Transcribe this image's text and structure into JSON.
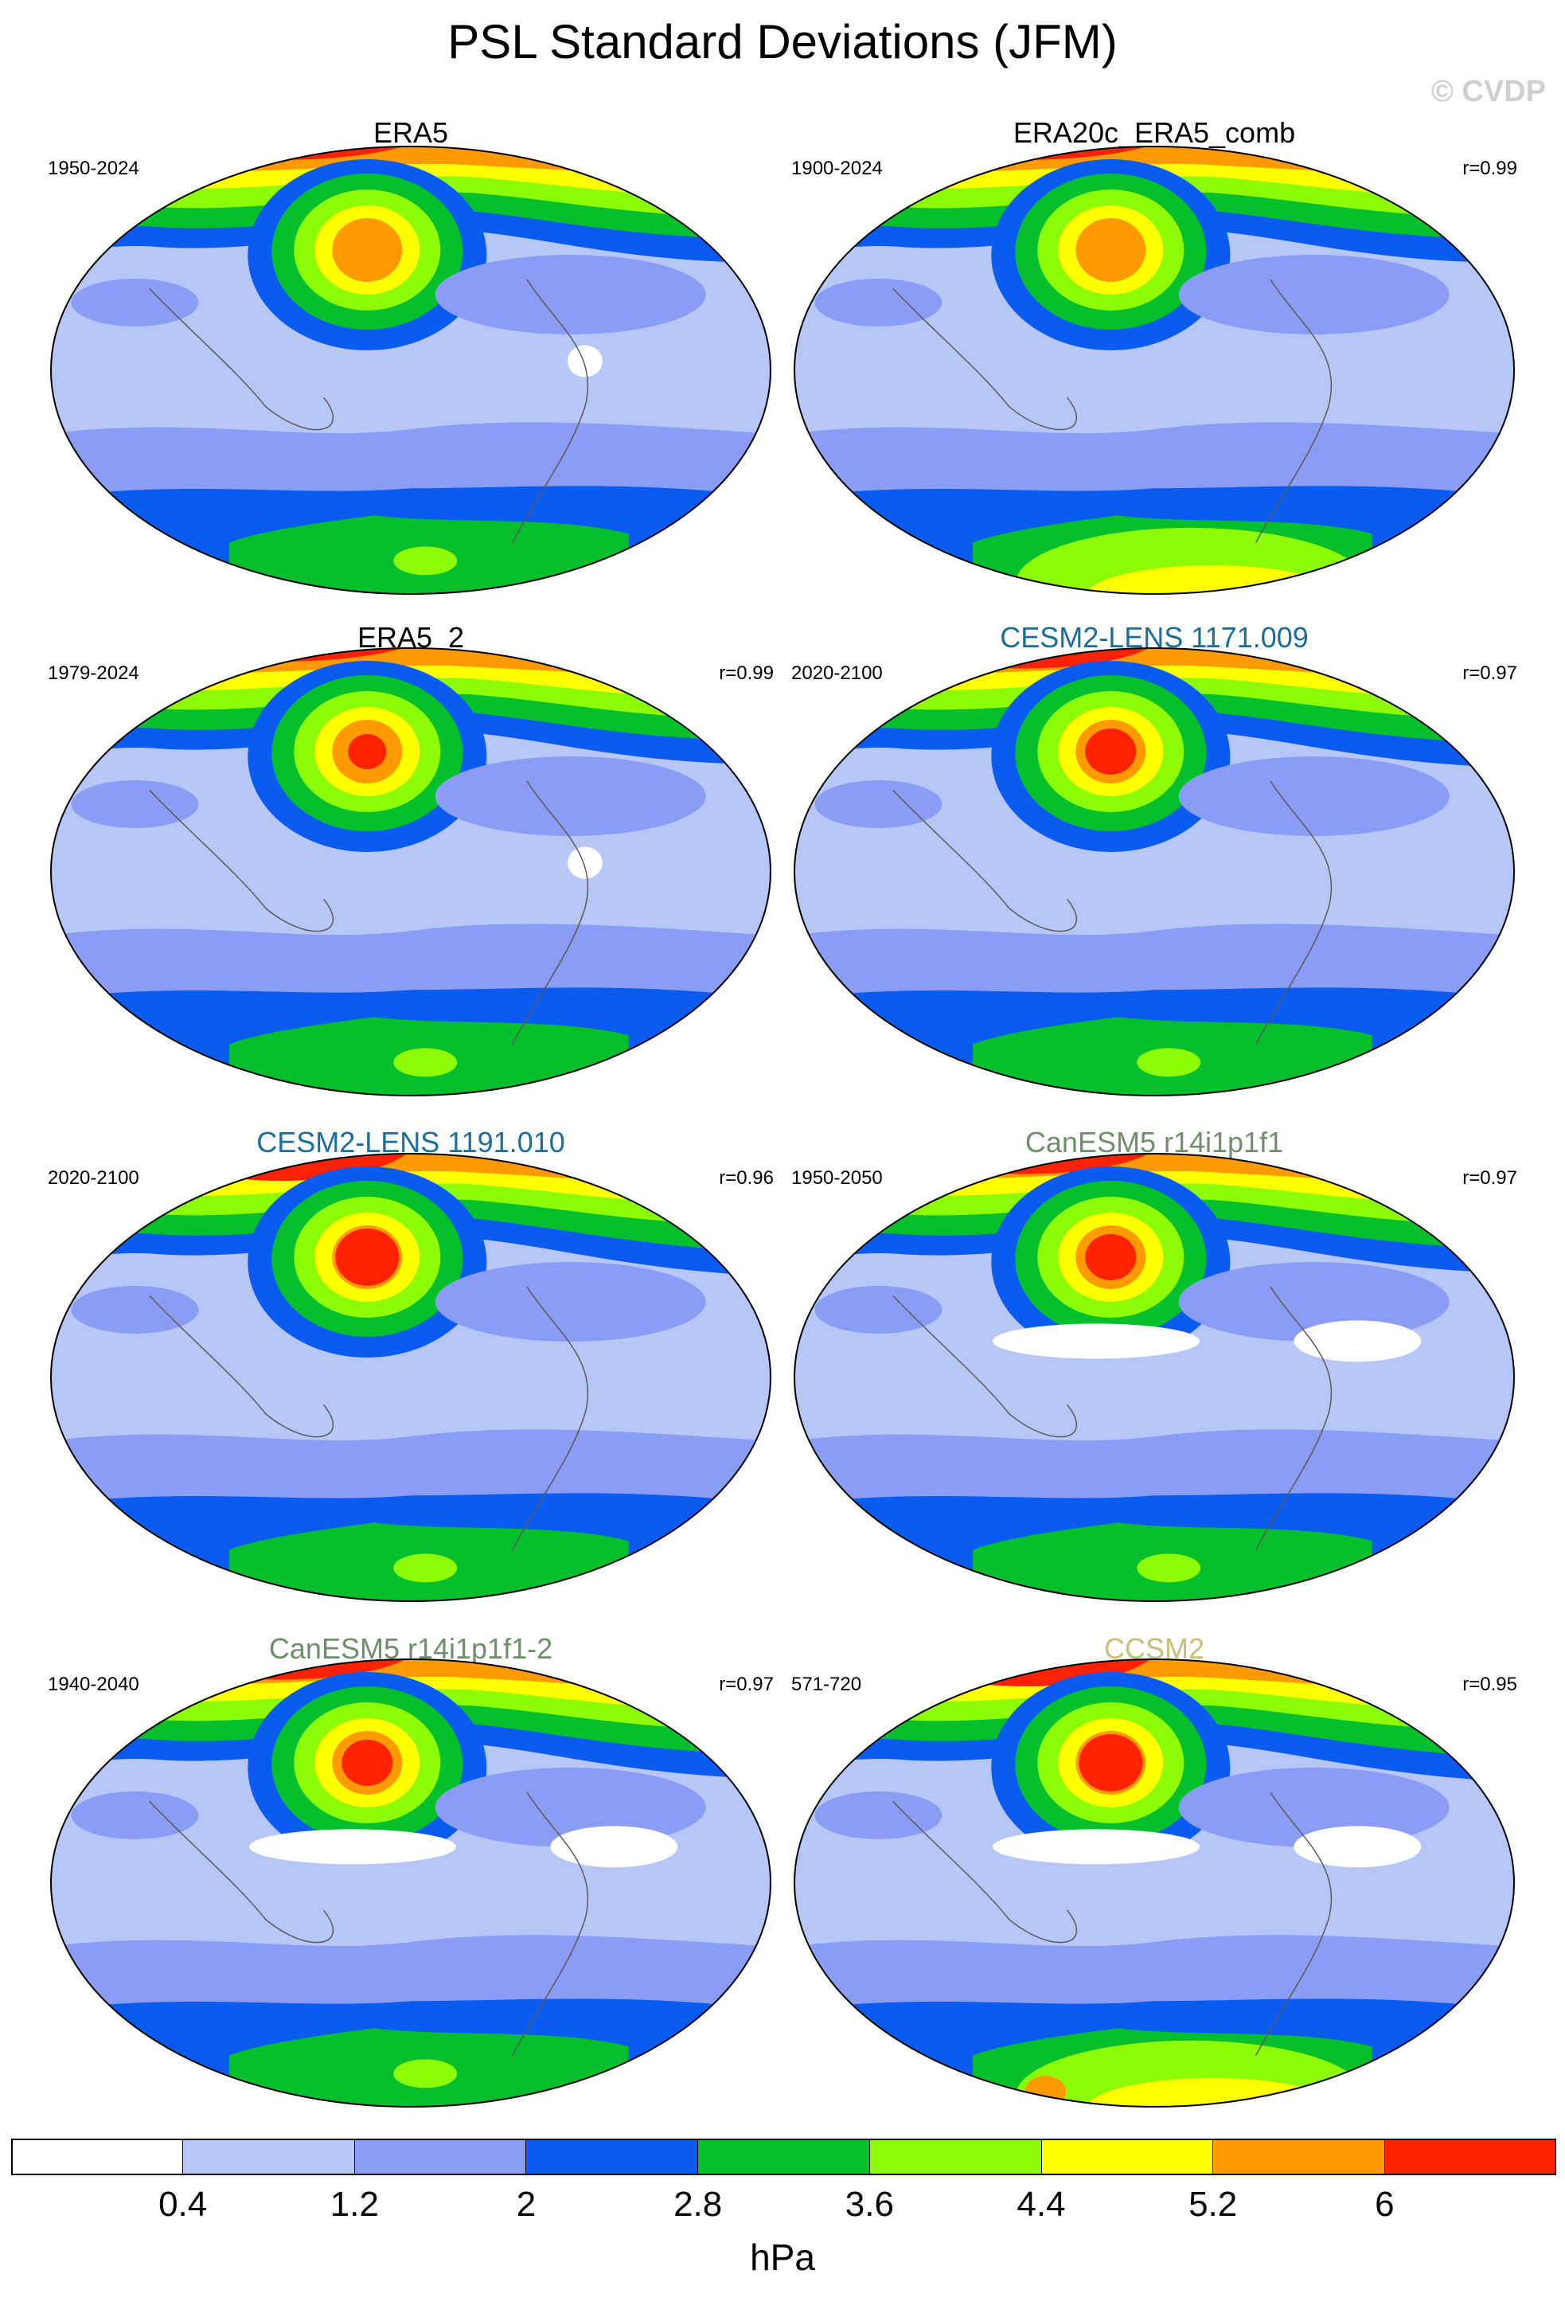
{
  "title": "PSL Standard Deviations (JFM)",
  "watermark": "© CVDP",
  "units": "hPa",
  "colors": {
    "levels": [
      "#ffffff",
      "#b6c6f7",
      "#8a9cf3",
      "#0a5cf0",
      "#06bf2c",
      "#8dfb05",
      "#ffff00",
      "#ff9b00",
      "#ff2200"
    ],
    "title_black": "#000000",
    "title_blue": "#1a6e9c",
    "title_green": "#6e8f6a",
    "title_khaki": "#c7be78",
    "ocean_base": "#b6c6f7",
    "coast": "#5a5a5a"
  },
  "colorbar": {
    "ticks": [
      "0.4",
      "1.2",
      "2",
      "2.8",
      "3.6",
      "4.4",
      "5.2",
      "6"
    ]
  },
  "panels": [
    {
      "title": "ERA5",
      "years": "1950-2024",
      "corr": "",
      "title_color": "title_black"
    },
    {
      "title": "ERA20c_ERA5_comb",
      "years": "1900-2024",
      "corr": "r=0.99",
      "title_color": "title_black"
    },
    {
      "title": "ERA5_2",
      "years": "1979-2024",
      "corr": "r=0.99",
      "title_color": "title_black"
    },
    {
      "title": "CESM2-LENS 1171.009",
      "years": "2020-2100",
      "corr": "r=0.97",
      "title_color": "title_blue"
    },
    {
      "title": "CESM2-LENS 1191.010",
      "years": "2020-2100",
      "corr": "r=0.96",
      "title_color": "title_blue"
    },
    {
      "title": "CanESM5 r14i1p1f1",
      "years": "1950-2050",
      "corr": "r=0.97",
      "title_color": "title_green"
    },
    {
      "title": "CanESM5 r14i1p1f1-2",
      "years": "1940-2040",
      "corr": "r=0.97",
      "title_color": "title_green"
    },
    {
      "title": "CCSM2",
      "years": "571-720",
      "corr": "r=0.95",
      "title_color": "title_khaki"
    }
  ]
}
